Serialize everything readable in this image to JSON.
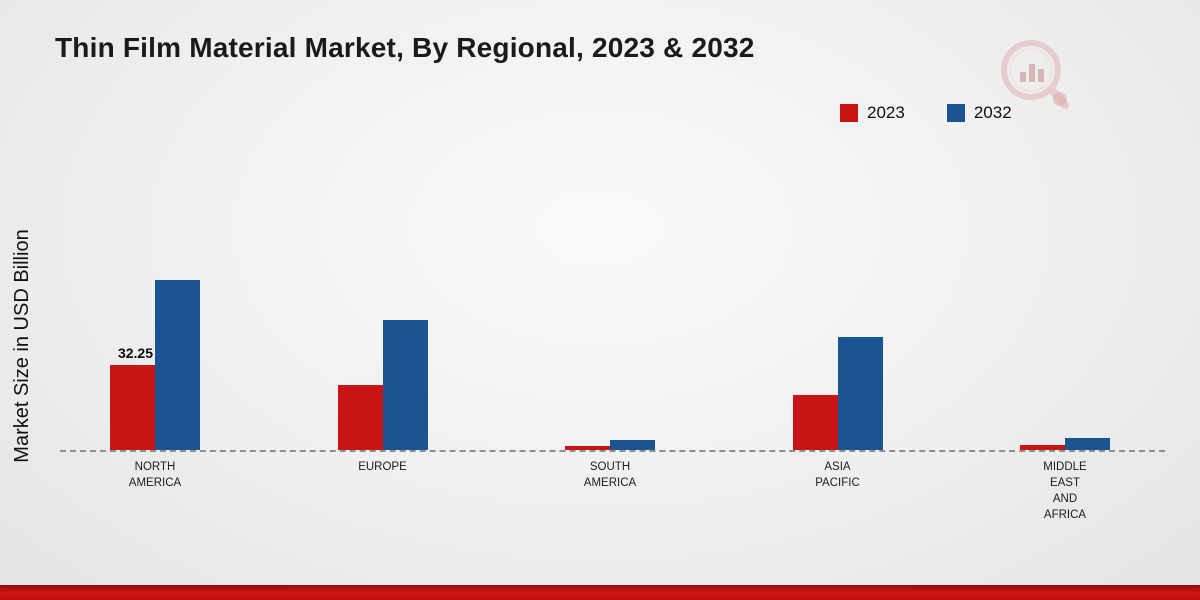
{
  "page": {
    "title": "Thin Film Material Market, By Regional, 2023 & 2032",
    "ylabel": "Market Size in USD Billion",
    "logo_icon": "magnifier-bar-chart",
    "accent_red": "#c81414",
    "accent_blue": "#1a5591"
  },
  "legend": {
    "position": "top-right",
    "items": [
      {
        "label": "2023",
        "color": "#c81414"
      },
      {
        "label": "2032",
        "color": "#1a5591"
      }
    ]
  },
  "chart_data": {
    "type": "bar",
    "title": "Thin Film Material Market, By Regional, 2023 & 2032",
    "xlabel": "",
    "ylabel": "Market Size in USD Billion",
    "ylim": [
      0,
      70
    ],
    "grid": false,
    "baseline": "dashed zero line",
    "categories": [
      "NORTH AMERICA",
      "EUROPE",
      "SOUTH AMERICA",
      "ASIA PACIFIC",
      "MIDDLE EAST AND AFRICA"
    ],
    "category_lines": [
      [
        "NORTH",
        "AMERICA"
      ],
      [
        "EUROPE"
      ],
      [
        "SOUTH",
        "AMERICA"
      ],
      [
        "ASIA",
        "PACIFIC"
      ],
      [
        "MIDDLE",
        "EAST",
        "AND",
        "AFRICA"
      ]
    ],
    "series": [
      {
        "name": "2023",
        "color": "#c81414",
        "values": [
          32.25,
          24.5,
          1.5,
          21,
          1.9
        ]
      },
      {
        "name": "2032",
        "color": "#1a5591",
        "values": [
          64.5,
          49.5,
          3.8,
          43,
          4.5
        ]
      }
    ],
    "annotations": [
      {
        "series": "2023",
        "category": "NORTH AMERICA",
        "text": "32.25"
      }
    ]
  }
}
